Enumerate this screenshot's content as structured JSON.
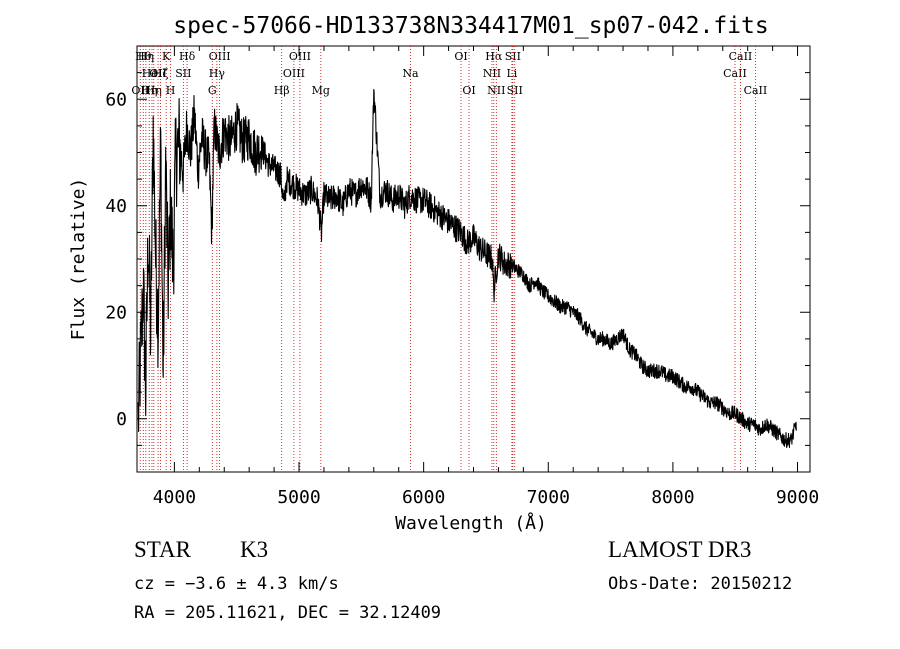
{
  "chart_data": {
    "type": "line",
    "title": "spec-57066-HD133738N334417M01_sp07-042.fits",
    "xlabel": "Wavelength (Å)",
    "ylabel": "Flux (relative)",
    "xlim": [
      3700,
      9100
    ],
    "ylim": [
      -10,
      70
    ],
    "xticks": [
      4000,
      5000,
      6000,
      7000,
      8000,
      9000
    ],
    "yticks": [
      0,
      20,
      40,
      60
    ],
    "series": [
      {
        "name": "flux",
        "x": [
          3710,
          3730,
          3750,
          3770,
          3790,
          3810,
          3830,
          3850,
          3870,
          3890,
          3910,
          3930,
          3950,
          3970,
          3990,
          4010,
          4040,
          4070,
          4100,
          4130,
          4160,
          4190,
          4220,
          4250,
          4280,
          4300,
          4320,
          4340,
          4360,
          4400,
          4450,
          4500,
          4550,
          4600,
          4650,
          4700,
          4750,
          4800,
          4850,
          4880,
          4900,
          4950,
          5000,
          5050,
          5100,
          5150,
          5180,
          5200,
          5250,
          5300,
          5350,
          5400,
          5450,
          5500,
          5550,
          5580,
          5600,
          5650,
          5700,
          5750,
          5800,
          5850,
          5890,
          5950,
          6000,
          6050,
          6100,
          6150,
          6200,
          6250,
          6300,
          6350,
          6400,
          6450,
          6500,
          6550,
          6563,
          6600,
          6650,
          6700,
          6750,
          6800,
          6850,
          6900,
          6950,
          7000,
          7050,
          7100,
          7150,
          7200,
          7250,
          7300,
          7350,
          7400,
          7450,
          7500,
          7550,
          7600,
          7650,
          7700,
          7750,
          7800,
          7850,
          7900,
          7950,
          8000,
          8050,
          8100,
          8150,
          8200,
          8250,
          8300,
          8350,
          8400,
          8450,
          8500,
          8550,
          8600,
          8650,
          8700,
          8750,
          8800,
          8850,
          8900,
          8950,
          8990
        ],
        "values": [
          0,
          12,
          25,
          5,
          35,
          15,
          55,
          30,
          18,
          52,
          8,
          48,
          25,
          40,
          28,
          49,
          52,
          46,
          55,
          50,
          57,
          47,
          53,
          50,
          48,
          35,
          55,
          52,
          50,
          54,
          52,
          55,
          52,
          53,
          50,
          51,
          48,
          47,
          46,
          40,
          45,
          44,
          43,
          42,
          43,
          41,
          35,
          42,
          41,
          42,
          40,
          43,
          42,
          44,
          43,
          41,
          62,
          42,
          43,
          41,
          42,
          40,
          42,
          41,
          41,
          40,
          39,
          38,
          37,
          36,
          35,
          33,
          34,
          32,
          31,
          30,
          24,
          31,
          29,
          29,
          28,
          27,
          25,
          26,
          24,
          23,
          22,
          21,
          21,
          20,
          19,
          17,
          16,
          15,
          15,
          14,
          15,
          16,
          13,
          12,
          10,
          9,
          9,
          9,
          8,
          8,
          7,
          6,
          6,
          5,
          4,
          3,
          3,
          2,
          1,
          1,
          0,
          -1,
          -1,
          -2,
          -1,
          -2,
          -3,
          -4,
          -4,
          -1
        ]
      }
    ],
    "lines": [
      {
        "wl": 3726,
        "label": "OII",
        "row": 3
      },
      {
        "wl": 3750,
        "label": "Hθ",
        "row": 1
      },
      {
        "wl": 3771,
        "label": "Hη",
        "row": 1
      },
      {
        "wl": 3798,
        "label": "Hη",
        "row": 3
      },
      {
        "wl": 3820,
        "label": "HeI",
        "row": 2
      },
      {
        "wl": 3835,
        "label": "Hη",
        "row": 3
      },
      {
        "wl": 3869,
        "label": "OII",
        "row": 2
      },
      {
        "wl": 3889,
        "label": "Hζ",
        "row": 2
      },
      {
        "wl": 3934,
        "label": "K",
        "row": 1
      },
      {
        "wl": 3969,
        "label": "H",
        "row": 3
      },
      {
        "wl": 4072,
        "label": "SII",
        "row": 2
      },
      {
        "wl": 4102,
        "label": "Hδ",
        "row": 1
      },
      {
        "wl": 4304,
        "label": "G",
        "row": 3
      },
      {
        "wl": 4341,
        "label": "Hγ",
        "row": 2
      },
      {
        "wl": 4363,
        "label": "OIII",
        "row": 1
      },
      {
        "wl": 4861,
        "label": "Hβ",
        "row": 3
      },
      {
        "wl": 4959,
        "label": "OIII",
        "row": 2
      },
      {
        "wl": 5007,
        "label": "OIII",
        "row": 1
      },
      {
        "wl": 5175,
        "label": "Mg",
        "row": 3
      },
      {
        "wl": 5894,
        "label": "Na",
        "row": 2
      },
      {
        "wl": 6300,
        "label": "OI",
        "row": 1
      },
      {
        "wl": 6364,
        "label": "OI",
        "row": 3
      },
      {
        "wl": 6548,
        "label": "NII",
        "row": 2
      },
      {
        "wl": 6563,
        "label": "Hα",
        "row": 1
      },
      {
        "wl": 6583,
        "label": "NII",
        "row": 3
      },
      {
        "wl": 6708,
        "label": "Li",
        "row": 2
      },
      {
        "wl": 6716,
        "label": "SII",
        "row": 1
      },
      {
        "wl": 6731,
        "label": "SII",
        "row": 3
      },
      {
        "wl": 8498,
        "label": "CaII",
        "row": 2
      },
      {
        "wl": 8542,
        "label": "CaII",
        "row": 1
      },
      {
        "wl": 8662,
        "label": "CaII",
        "row": 3
      }
    ]
  },
  "info": {
    "class": "STAR",
    "subclass": "K3",
    "survey": "LAMOST DR3",
    "cz": "cz = −3.6 ± 4.3 km/s",
    "obs_date": "Obs-Date: 20150212",
    "radec": "RA = 205.11621, DEC =  32.12409"
  }
}
